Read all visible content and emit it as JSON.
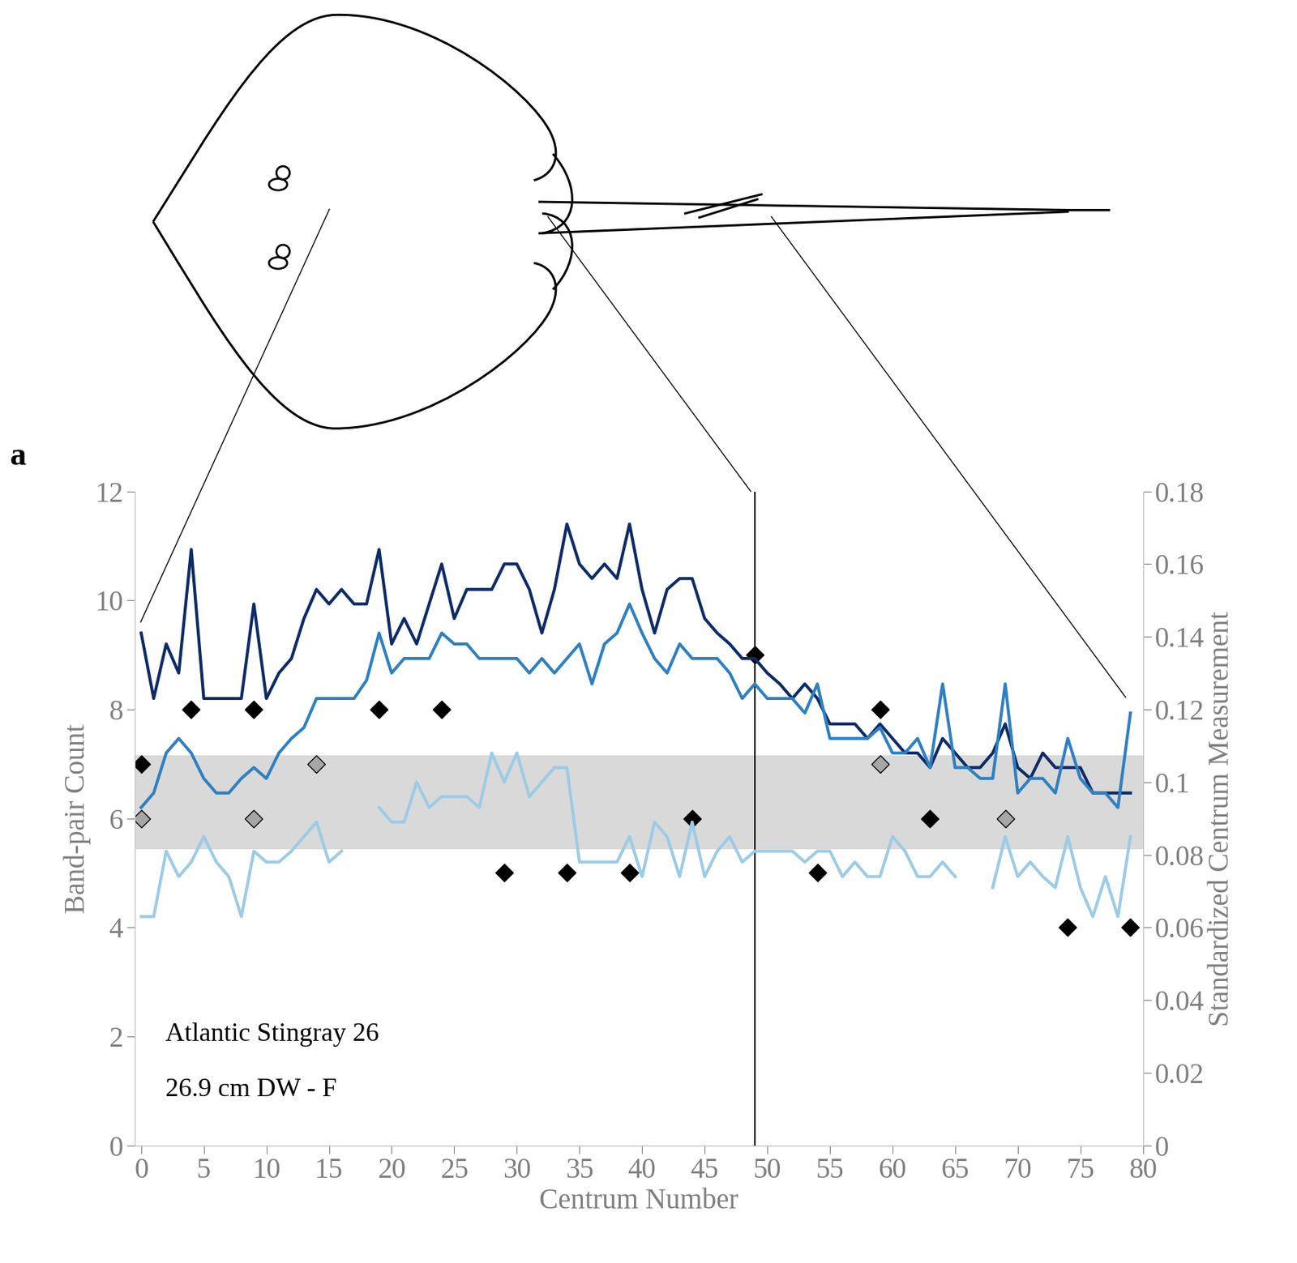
{
  "chart_data": {
    "type": "line",
    "panel_label": "a",
    "annotations": [
      "Atlantic Stingray 26",
      "26.9 cm DW - F"
    ],
    "x_label": "Centrum Number",
    "y_label": "Band-pair Count",
    "y2_label": "Standardized Centrum Measurement",
    "xlim": [
      -0.5,
      80
    ],
    "xticks": [
      0,
      5,
      10,
      15,
      20,
      25,
      30,
      35,
      40,
      45,
      50,
      55,
      60,
      65,
      70,
      75,
      80
    ],
    "ylim": [
      0,
      12
    ],
    "yticks": [
      0,
      2,
      4,
      6,
      8,
      10,
      12
    ],
    "y2lim": [
      0,
      0.18
    ],
    "y2ticks": [
      0,
      0.02,
      0.04,
      0.06,
      0.08,
      0.1,
      0.12,
      0.14,
      0.16,
      0.18
    ],
    "vline_x": 49,
    "band": {
      "ymin": 5.43,
      "ymax": 7.16,
      "color": "#d9d9d9"
    },
    "x": [
      0,
      1,
      2,
      3,
      4,
      5,
      6,
      7,
      8,
      9,
      10,
      11,
      12,
      13,
      14,
      15,
      16,
      17,
      18,
      19,
      20,
      21,
      22,
      23,
      24,
      25,
      26,
      27,
      28,
      29,
      30,
      31,
      32,
      33,
      34,
      35,
      36,
      37,
      38,
      39,
      40,
      41,
      42,
      43,
      44,
      45,
      46,
      47,
      48,
      49,
      50,
      51,
      52,
      53,
      54,
      55,
      56,
      57,
      58,
      59,
      60,
      61,
      62,
      63,
      64,
      65,
      66,
      67,
      68,
      69,
      70,
      71,
      72,
      73,
      74,
      75,
      76,
      77,
      78,
      79
    ],
    "series": [
      {
        "type": "line",
        "axis": "y2",
        "color": "#0d2b66",
        "line_style": "solid",
        "values": [
          0.141,
          0.123,
          0.138,
          0.13,
          0.164,
          0.123,
          0.123,
          0.123,
          0.123,
          0.149,
          0.123,
          0.13,
          0.134,
          0.145,
          0.153,
          0.149,
          0.153,
          0.149,
          0.149,
          0.164,
          0.138,
          0.145,
          0.138,
          0.149,
          0.16,
          0.145,
          0.153,
          0.153,
          0.153,
          0.16,
          0.16,
          0.153,
          0.141,
          0.153,
          0.171,
          0.16,
          0.156,
          0.16,
          0.156,
          0.171,
          0.153,
          0.141,
          0.153,
          0.156,
          0.156,
          0.145,
          0.141,
          0.138,
          0.134,
          0.134,
          0.13,
          0.127,
          0.123,
          0.127,
          0.123,
          0.116,
          0.116,
          0.116,
          0.112,
          0.116,
          0.112,
          0.108,
          0.108,
          0.104,
          0.112,
          0.108,
          0.104,
          0.104,
          0.108,
          0.116,
          0.104,
          0.101,
          0.108,
          0.104,
          0.104,
          0.104,
          0.097,
          0.097,
          0.097,
          0.097
        ]
      },
      {
        "type": "line",
        "axis": "y2",
        "color": "#2f80c1",
        "line_style": "solid",
        "values": [
          0.093,
          0.097,
          0.108,
          0.112,
          0.108,
          0.101,
          0.097,
          0.097,
          0.101,
          0.104,
          0.101,
          0.108,
          0.112,
          0.115,
          0.123,
          0.123,
          0.123,
          0.123,
          0.128,
          0.141,
          0.13,
          0.134,
          0.134,
          0.134,
          0.141,
          0.138,
          0.138,
          0.134,
          0.134,
          0.134,
          0.134,
          0.13,
          0.134,
          0.13,
          0.134,
          0.138,
          0.127,
          0.138,
          0.141,
          0.149,
          0.141,
          0.134,
          0.13,
          0.138,
          0.134,
          0.134,
          0.134,
          0.13,
          0.123,
          0.127,
          0.123,
          0.123,
          0.123,
          0.119,
          0.127,
          0.112,
          0.112,
          0.112,
          0.112,
          0.115,
          0.108,
          0.108,
          0.112,
          0.104,
          0.127,
          0.104,
          0.104,
          0.101,
          0.101,
          0.127,
          0.097,
          0.101,
          0.101,
          0.097,
          0.112,
          0.101,
          0.097,
          0.097,
          0.093,
          0.119
        ]
      },
      {
        "type": "line",
        "axis": "y2",
        "color": "#9dcbe6",
        "line_style": "solid",
        "values": [
          0.063,
          0.063,
          0.081,
          0.074,
          0.078,
          0.085,
          0.078,
          0.074,
          0.063,
          0.081,
          0.078,
          0.078,
          0.081,
          0.085,
          0.089,
          0.078,
          0.081,
          null,
          null,
          0.093,
          0.089,
          0.089,
          0.1,
          0.093,
          0.096,
          0.096,
          0.096,
          0.093,
          0.108,
          0.1,
          0.108,
          0.096,
          0.1,
          0.104,
          0.104,
          0.078,
          0.078,
          0.078,
          0.078,
          0.085,
          0.074,
          0.089,
          0.085,
          0.074,
          0.089,
          0.074,
          0.081,
          0.085,
          0.078,
          0.081,
          0.081,
          0.081,
          0.081,
          0.078,
          0.081,
          0.081,
          0.074,
          0.078,
          0.074,
          0.074,
          0.085,
          0.081,
          0.074,
          0.074,
          0.078,
          0.074,
          null,
          null,
          0.071,
          0.085,
          0.074,
          0.078,
          0.074,
          0.071,
          0.085,
          0.071,
          0.063,
          0.074,
          0.063,
          0.085
        ]
      },
      {
        "type": "scatter",
        "axis": "y",
        "color": "#000000",
        "marker": "D",
        "x": [
          0,
          4,
          9,
          19,
          24,
          29,
          34,
          39,
          44,
          49,
          54,
          59,
          63,
          74,
          79
        ],
        "values": [
          7,
          8,
          8,
          8,
          8,
          5,
          5,
          5,
          6,
          9,
          5,
          8,
          6,
          4,
          4
        ]
      },
      {
        "type": "scatter",
        "axis": "y",
        "color": "#a6a6a6",
        "marker": "D",
        "x": [
          0,
          9,
          14,
          59,
          69
        ],
        "values": [
          6,
          6,
          7,
          7,
          6
        ]
      }
    ]
  }
}
